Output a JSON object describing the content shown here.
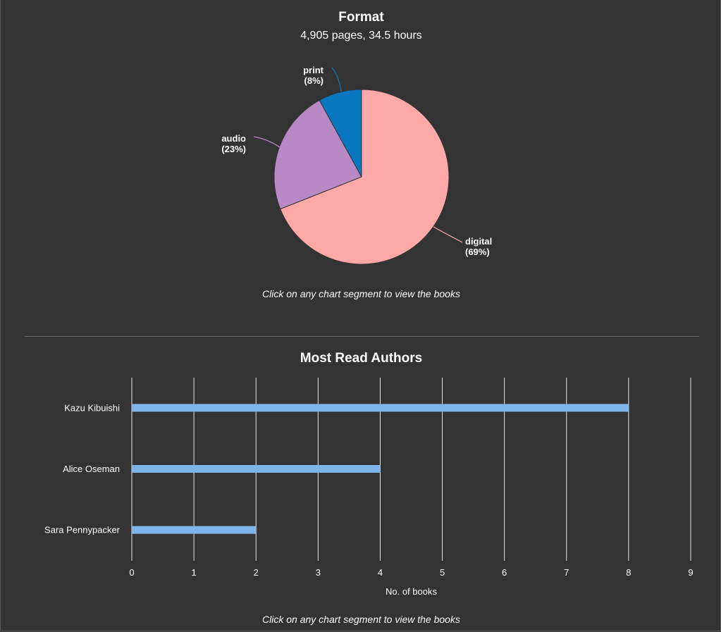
{
  "format_section": {
    "title": "Format",
    "subtitle": "4,905 pages, 34.5 hours",
    "hint": "Click on any chart segment to view the books"
  },
  "authors_section": {
    "title": "Most Read Authors",
    "hint": "Click on any chart segment to view the books"
  },
  "chart_data": [
    {
      "type": "pie",
      "title": "Format",
      "subtitle": "4,905 pages, 34.5 hours",
      "slices": [
        {
          "label": "digital",
          "pct_label": "(69%)",
          "value": 69,
          "color": "#ffa8a8"
        },
        {
          "label": "audio",
          "pct_label": "(23%)",
          "value": 23,
          "color": "#b889c4"
        },
        {
          "label": "print",
          "pct_label": "(8%)",
          "value": 8,
          "color": "#0a78c1"
        }
      ],
      "start": "top",
      "direction": "clockwise"
    },
    {
      "type": "bar",
      "orientation": "horizontal",
      "title": "Most Read Authors",
      "categories": [
        "Kazu Kibuishi",
        "Alice Oseman",
        "Sara Pennypacker"
      ],
      "values": [
        8,
        4,
        2
      ],
      "xlabel": "No. of books",
      "ylabel": "",
      "xlim": [
        0,
        9
      ],
      "xticks": [
        "0",
        "1",
        "2",
        "3",
        "4",
        "5",
        "6",
        "7",
        "8",
        "9"
      ],
      "bar_color": "#7fb4ea",
      "grid": true
    }
  ]
}
